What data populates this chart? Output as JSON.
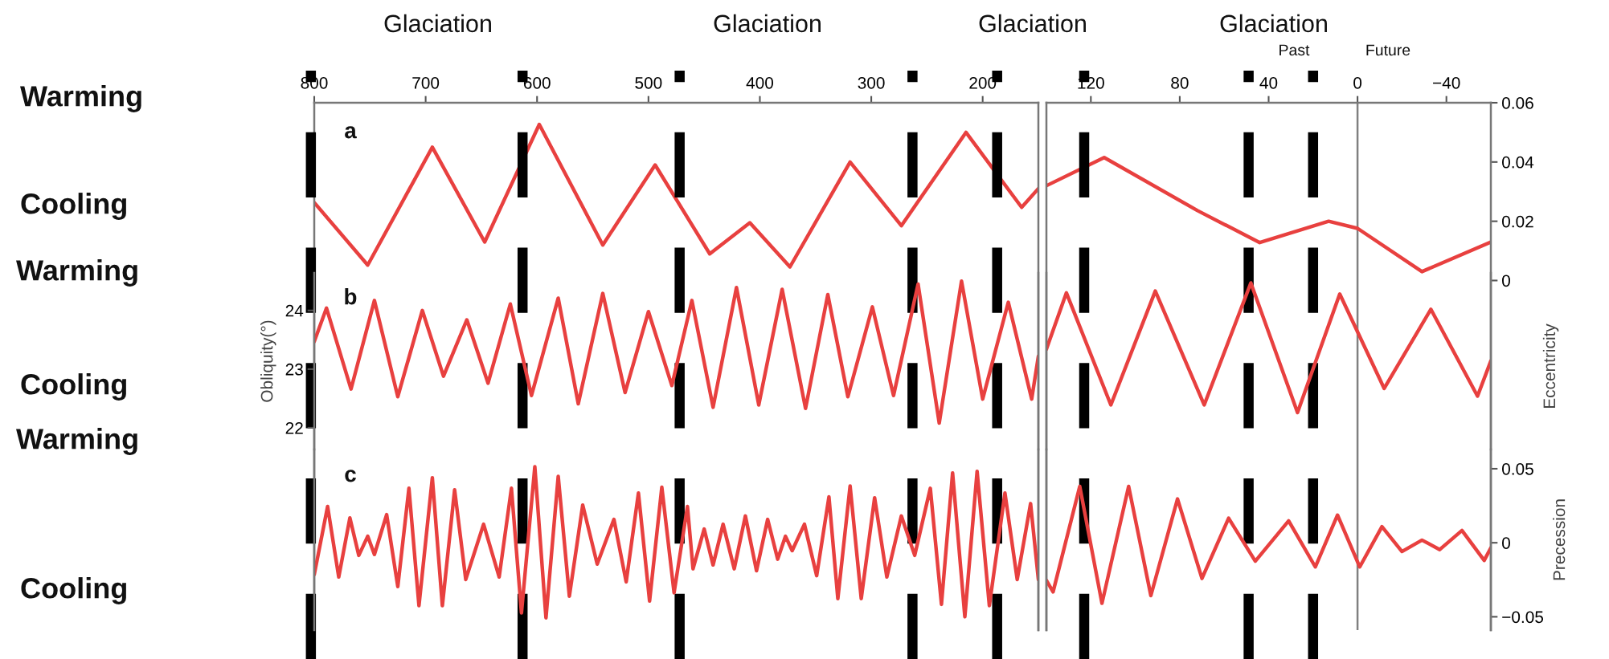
{
  "chart_data": [
    {
      "type": "line",
      "xlim": [
        800,
        150
      ],
      "xticks": [
        800,
        700,
        600,
        500,
        400,
        300,
        200
      ],
      "ylim": [
        -0.118,
        0.06
      ],
      "tick_labels": "x",
      "grid": false,
      "annotations": [
        "a",
        "Warming",
        "Cooling",
        "Warming",
        "Cooling",
        "Warming",
        "Cooling",
        "Glaciation",
        "Glaciation",
        "Glaciation",
        "Glaciation"
      ],
      "ref_lines": [
        {
          "axis": "x",
          "value": 803,
          "color": "#000000",
          "line_style": "dashed"
        },
        {
          "axis": "x",
          "value": 613,
          "color": "#000000",
          "line_style": "dashed"
        },
        {
          "axis": "x",
          "value": 472,
          "color": "#000000",
          "line_style": "dashed"
        },
        {
          "axis": "x",
          "value": 263,
          "color": "#000000",
          "line_style": "dashed"
        },
        {
          "axis": "x",
          "value": 187,
          "color": "#000000",
          "line_style": "dashed"
        }
      ],
      "series": [
        {
          "color": "#e8403f",
          "x": [
            800,
            752,
            694,
            647,
            598,
            541,
            494,
            445,
            409,
            373,
            319,
            273,
            215,
            165,
            150
          ],
          "values": [
            0.0263,
            0.0052,
            0.045,
            0.013,
            0.0527,
            0.012,
            0.039,
            0.009,
            0.0195,
            0.0046,
            0.04,
            0.0185,
            0.05,
            0.0247,
            0.031
          ]
        }
      ]
    },
    {
      "type": "line",
      "xlim": [
        800,
        150
      ],
      "ylim": [
        21.63,
        24.64
      ],
      "yticks": [
        22,
        23,
        24
      ],
      "tick_labels": "y",
      "ylabel": "Obliquity(°)",
      "annotations": [
        "b"
      ],
      "series": [
        {
          "color": "#e8403f",
          "x": [
            800,
            789,
            767,
            746,
            725,
            703,
            684,
            663,
            644,
            624,
            605,
            581,
            563,
            541,
            521,
            500,
            479,
            461,
            442,
            421,
            401,
            380,
            359,
            339,
            321,
            299,
            280,
            258,
            239,
            219,
            200,
            177,
            156,
            150
          ],
          "values": [
            23.47,
            24.04,
            22.66,
            24.17,
            22.53,
            24.0,
            22.88,
            23.84,
            22.76,
            24.11,
            22.55,
            24.21,
            22.41,
            24.29,
            22.6,
            23.98,
            22.72,
            24.17,
            22.35,
            24.39,
            22.39,
            24.36,
            22.33,
            24.27,
            22.53,
            24.06,
            22.55,
            24.45,
            22.08,
            24.5,
            22.49,
            24.14,
            22.49,
            23.22
          ]
        }
      ]
    },
    {
      "type": "line",
      "xlim": [
        800,
        150
      ],
      "ylim": [
        -0.059,
        0.063
      ],
      "tick_labels": false,
      "annotations": [
        "c"
      ],
      "series": [
        {
          "color": "#e8403f",
          "x": [
            800,
            788,
            778,
            768,
            760,
            752,
            746,
            735,
            725,
            715,
            706,
            694,
            685,
            674,
            664,
            648,
            634,
            623,
            614,
            602,
            592,
            581,
            571,
            559,
            546,
            531,
            520,
            509,
            499,
            488,
            477,
            465,
            460,
            450,
            442,
            433,
            423,
            413,
            403,
            393,
            384,
            377,
            371,
            360,
            349,
            338,
            330,
            319,
            309,
            297,
            286,
            273,
            261,
            247,
            237,
            227,
            216,
            205,
            194,
            180,
            169,
            157,
            150
          ],
          "values": [
            -0.0215,
            0.0245,
            -0.0231,
            0.0168,
            -0.0085,
            0.0044,
            -0.0079,
            0.019,
            -0.0296,
            0.0368,
            -0.0425,
            0.0439,
            -0.0425,
            0.0358,
            -0.0248,
            0.0125,
            -0.0231,
            0.0368,
            -0.0474,
            0.0514,
            -0.0507,
            0.0449,
            -0.0361,
            0.0255,
            -0.0144,
            0.0158,
            -0.0264,
            0.0336,
            -0.0393,
            0.0375,
            -0.0338,
            0.0245,
            -0.0176,
            0.0093,
            -0.015,
            0.0125,
            -0.0176,
            0.0181,
            -0.0189,
            0.0158,
            -0.0111,
            0.0044,
            -0.0053,
            0.0125,
            -0.0222,
            0.031,
            -0.0377,
            0.0384,
            -0.0377,
            0.0304,
            -0.0231,
            0.0181,
            -0.0085,
            0.0368,
            -0.0416,
            0.0472,
            -0.05,
            0.0482,
            -0.0425,
            0.0336,
            -0.0248,
            0.0265,
            -0.0248
          ]
        }
      ]
    },
    {
      "type": "line",
      "xlim": [
        140,
        -60
      ],
      "xticks": [
        120,
        80,
        40,
        0,
        {
          "value": -40,
          "label": "−40"
        }
      ],
      "ylim": [
        -0.118,
        0.06
      ],
      "yticks": [
        0,
        0.02,
        0.04,
        0.06
      ],
      "ylabel": "Eccentricity",
      "annotations": [
        "Past",
        "Future"
      ],
      "ref_lines": [
        {
          "axis": "x",
          "value": 123,
          "color": "#000000",
          "line_style": "dashed"
        },
        {
          "axis": "x",
          "value": 49,
          "color": "#000000",
          "line_style": "dashed"
        },
        {
          "axis": "x",
          "value": 20,
          "color": "#000000",
          "line_style": "dashed"
        },
        {
          "axis": "x",
          "value": 0,
          "color": "#808080",
          "line_style": "solid"
        }
      ],
      "series": [
        {
          "color": "#e8403f",
          "x": [
            140,
            114,
            72,
            44,
            13,
            0,
            -29,
            -60
          ],
          "values": [
            0.032,
            0.0415,
            0.0236,
            0.0128,
            0.02,
            0.0176,
            0.003,
            0.013
          ]
        }
      ]
    },
    {
      "type": "line",
      "xlim": [
        140,
        -60
      ],
      "ylim": [
        21.63,
        24.64
      ],
      "tick_labels": false,
      "series": [
        {
          "color": "#e8403f",
          "x": [
            140,
            131,
            111,
            91,
            69,
            48,
            27,
            8,
            -12,
            -33,
            -54,
            -60
          ],
          "values": [
            23.34,
            24.3,
            22.39,
            24.33,
            22.39,
            24.47,
            22.26,
            24.28,
            22.67,
            24.02,
            22.54,
            23.14
          ]
        }
      ]
    },
    {
      "type": "line",
      "xlim": [
        140,
        -60
      ],
      "ylim": [
        -0.059,
        0.063
      ],
      "yticks": [
        0.05,
        0,
        {
          "value": -0.05,
          "label": "−0.05"
        }
      ],
      "tick_labels": "y",
      "ylabel": "Precession",
      "series": [
        {
          "color": "#e8403f",
          "x": [
            140,
            137,
            125,
            115,
            103,
            93,
            81,
            70,
            58,
            46,
            31,
            19,
            9,
            -1,
            -11,
            -20,
            -29,
            -37,
            -47,
            -57,
            -60
          ],
          "values": [
            -0.0254,
            -0.0332,
            0.0381,
            -0.0409,
            0.0381,
            -0.0357,
            0.0296,
            -0.0241,
            0.0166,
            -0.0124,
            0.0148,
            -0.0163,
            0.0187,
            -0.0163,
            0.0109,
            -0.0059,
            0.0018,
            -0.0046,
            0.0083,
            -0.0119,
            -0.0034
          ]
        }
      ]
    }
  ]
}
